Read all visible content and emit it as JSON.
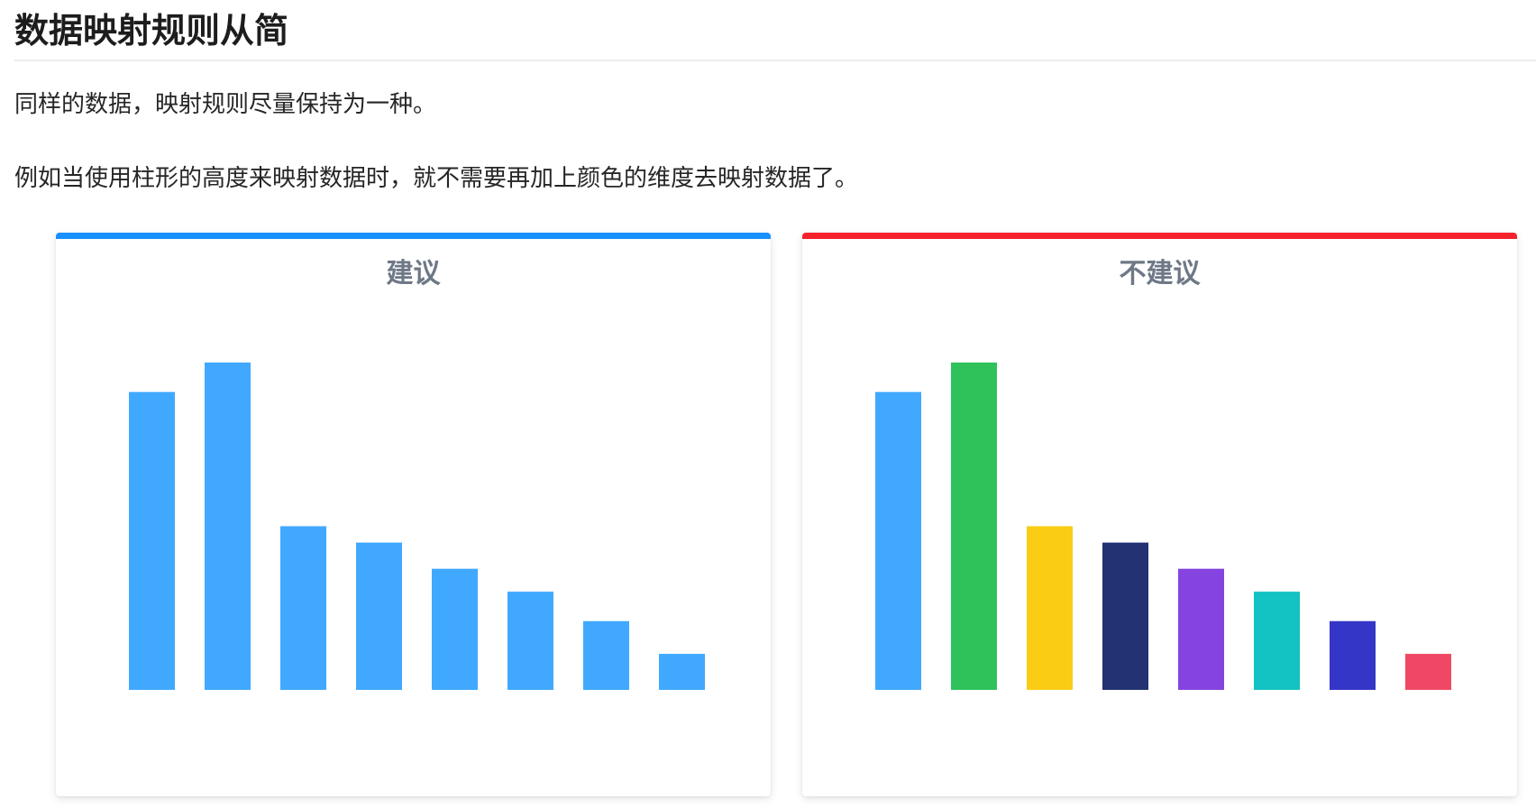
{
  "heading": "数据映射规则从简",
  "paragraphs": {
    "p1": "同样的数据，映射规则尽量保持为一种。",
    "p2": "例如当使用柱形的高度来映射数据时，就不需要再加上颜色的维度去映射数据了。"
  },
  "panels": {
    "recommended": {
      "title": "建议",
      "accent_color": "#1890ff"
    },
    "not_recommended": {
      "title": "不建议",
      "accent_color": "#f5222d"
    }
  },
  "chart_data": [
    {
      "type": "bar",
      "title": "建议",
      "categories": [
        "",
        "",
        "",
        "",
        "",
        "",
        "",
        ""
      ],
      "values": [
        91,
        100,
        50,
        45,
        37,
        30,
        21,
        11
      ],
      "ylim": [
        0,
        100
      ],
      "grid": false,
      "legend": "none",
      "colors": [
        "#40a9ff",
        "#40a9ff",
        "#40a9ff",
        "#40a9ff",
        "#40a9ff",
        "#40a9ff",
        "#40a9ff",
        "#40a9ff"
      ]
    },
    {
      "type": "bar",
      "title": "不建议",
      "categories": [
        "",
        "",
        "",
        "",
        "",
        "",
        "",
        ""
      ],
      "values": [
        91,
        100,
        50,
        45,
        37,
        30,
        21,
        11
      ],
      "ylim": [
        0,
        100
      ],
      "grid": false,
      "legend": "none",
      "colors": [
        "#40a9ff",
        "#2fc25b",
        "#facc14",
        "#223273",
        "#8543e0",
        "#13c2c2",
        "#3436c7",
        "#f04864"
      ]
    }
  ]
}
